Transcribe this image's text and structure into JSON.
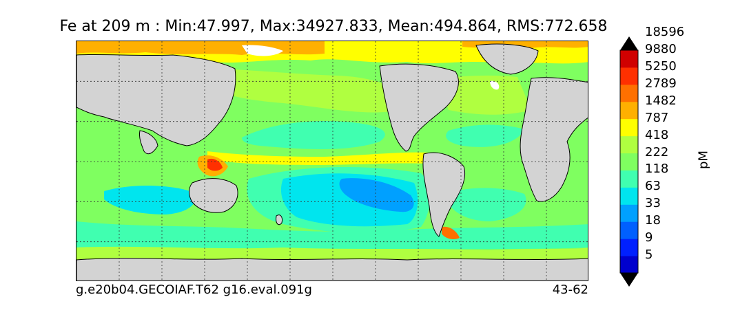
{
  "title": "Fe at 209 m : Min:47.997, Max:34927.833, Mean:494.864, RMS:772.658",
  "caption_left": "g.e20b04.GECOIAF.T62 g16.eval.091g",
  "caption_right": "43-62",
  "colorbar": {
    "unit": "pM",
    "extend": "both",
    "levels": [
      "5",
      "9",
      "18",
      "33",
      "63",
      "118",
      "222",
      "418",
      "787",
      "1482",
      "2789",
      "5250",
      "9880",
      "18596"
    ],
    "colors": [
      "#00008b",
      "#0000cd",
      "#0020ff",
      "#0060ff",
      "#00a0ff",
      "#00e5ee",
      "#40ffb0",
      "#7fff60",
      "#b0ff40",
      "#ffff00",
      "#ffb000",
      "#ff7000",
      "#ff3000",
      "#d00000",
      "#800000"
    ]
  },
  "map": {
    "land_color": "#d3d3d3",
    "missing_color": "#ffffff",
    "gridlines": "dashed",
    "projection": "cylindrical",
    "longitude_grid_count": 12,
    "latitude_grid_count": 6
  }
}
